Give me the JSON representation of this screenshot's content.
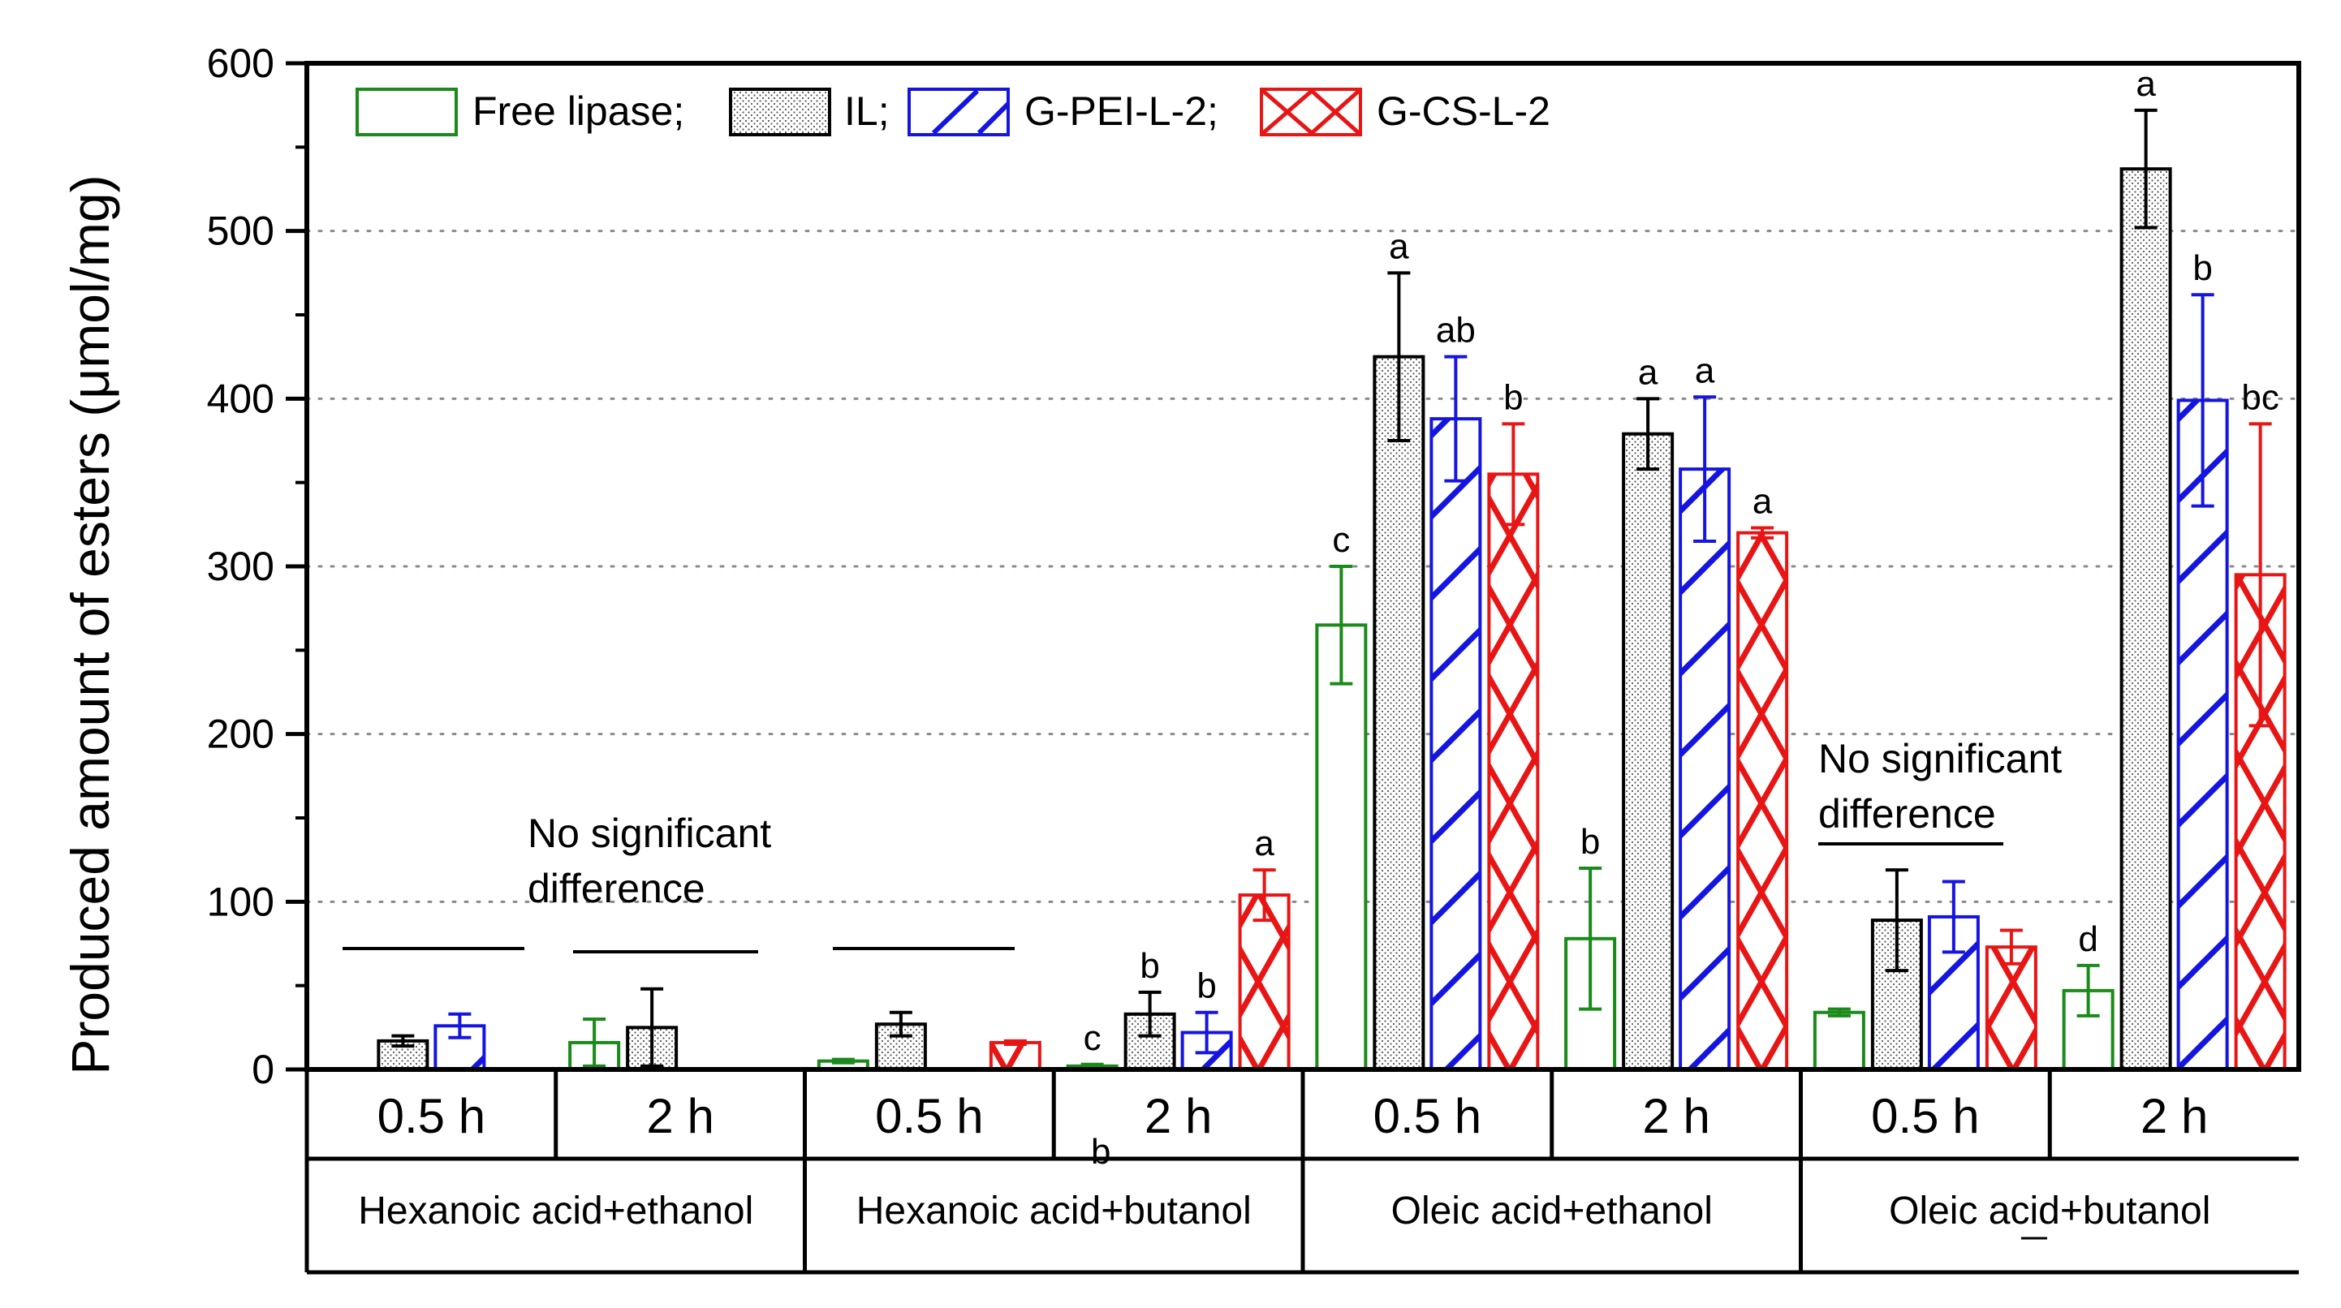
{
  "chart_data": {
    "type": "bar",
    "ylabel": "Produced amount of esters (μmol/mg)",
    "ylim": [
      0,
      600
    ],
    "yticks": [
      0,
      100,
      200,
      300,
      400,
      500,
      600
    ],
    "grid": true,
    "legend_position": "top-left",
    "series": [
      {
        "name": "Free lipase;",
        "color": "#1a8a1a",
        "pattern": "none",
        "values": [
          0,
          16,
          5,
          2,
          265,
          78,
          34,
          47
        ],
        "errors": [
          0,
          14,
          1,
          1,
          35,
          42,
          2,
          15
        ],
        "letters": [
          "",
          "",
          "",
          "c",
          "c",
          "b",
          "",
          "d"
        ]
      },
      {
        "name": "IL;",
        "color": "#000000",
        "pattern": "dots",
        "values": [
          17,
          25,
          27,
          33,
          425,
          379,
          89,
          537
        ],
        "errors": [
          3,
          23,
          7,
          13,
          50,
          21,
          30,
          35
        ],
        "letters": [
          "",
          "",
          "",
          "b",
          "a",
          "a",
          "",
          "a"
        ]
      },
      {
        "name": "G-PEI-L-2;",
        "color": "#1515e0",
        "pattern": "diagonal",
        "values": [
          26,
          0,
          0,
          22,
          388,
          358,
          91,
          399
        ],
        "errors": [
          7,
          0,
          0,
          12,
          37,
          43,
          21,
          63
        ],
        "letters": [
          "",
          "",
          "",
          "b",
          "ab",
          "a",
          "",
          "b"
        ]
      },
      {
        "name": "G-CS-L-2",
        "color": "#e81515",
        "pattern": "crosshatch",
        "values": [
          0,
          0,
          16,
          104,
          355,
          320,
          73,
          295
        ],
        "errors": [
          0,
          0,
          1,
          15,
          30,
          3,
          10,
          90
        ],
        "letters": [
          "",
          "",
          "",
          "a",
          "b",
          "a",
          "",
          "bc"
        ]
      }
    ],
    "categories": [
      "0.5 h",
      "2 h",
      "0.5 h",
      "2 h",
      "0.5 h",
      "2 h",
      "0.5 h",
      "2 h"
    ],
    "groups": [
      "Hexanoic acid+ethanol",
      "Hexanoic acid+butanol",
      "Oleic acid+ethanol",
      "Oleic acid+butanol"
    ],
    "annotations": [
      {
        "text_line1": "No significant",
        "text_line2": "difference"
      },
      {
        "text_line1": "No significant",
        "text_line2": "difference"
      }
    ],
    "stray_text": "b"
  }
}
